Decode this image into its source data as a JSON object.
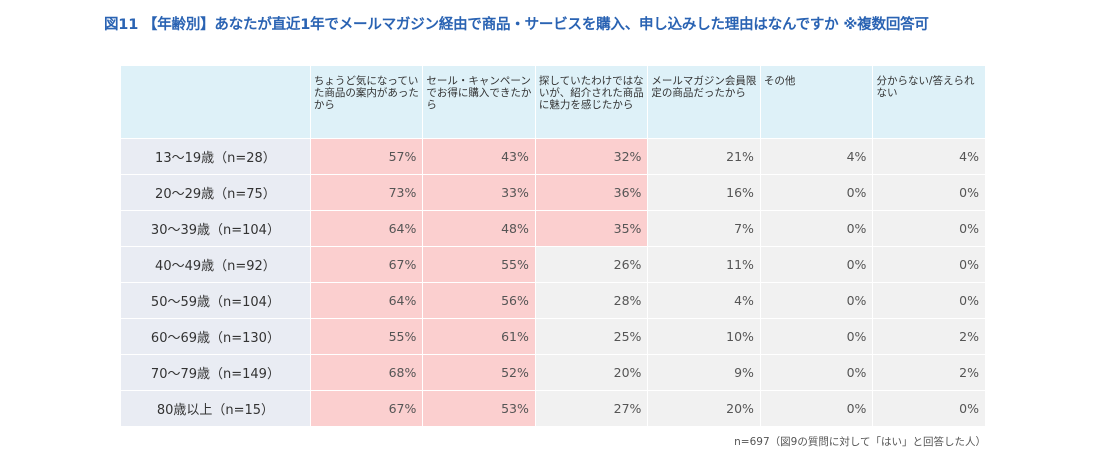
{
  "title": "図11 【年齢別】あなたが直近1年でメールマガジン経由で商品・サービスを購入、申し込みした理由はなんですか ※複数回答可",
  "note": "n=697（図9の質問に対して「はい」と回答した人）",
  "colors": {
    "header_bg": "#def1f8",
    "row_header_bg": "#e9ecf3",
    "cell_bg": "#f1f1f1",
    "highlight_bg": "#fbcfcf",
    "title": "#2a63b3"
  },
  "chart_data": {
    "type": "table",
    "columns": [
      "ちょうど気になっていた商品の案内があったから",
      "セール・キャンペーンでお得に購入できたから",
      "探していたわけではないが、紹介された商品に魅力を感じたから",
      "メールマガジン会員限定の商品だったから",
      "その他",
      "分からない/答えられない"
    ],
    "rows": [
      {
        "label": "13〜19歳（n=28）",
        "values": [
          "57%",
          "43%",
          "32%",
          "21%",
          "4%",
          "4%"
        ],
        "highlight": [
          true,
          true,
          true,
          false,
          false,
          false
        ]
      },
      {
        "label": "20〜29歳（n=75）",
        "values": [
          "73%",
          "33%",
          "36%",
          "16%",
          "0%",
          "0%"
        ],
        "highlight": [
          true,
          true,
          true,
          false,
          false,
          false
        ]
      },
      {
        "label": "30〜39歳（n=104）",
        "values": [
          "64%",
          "48%",
          "35%",
          "7%",
          "0%",
          "0%"
        ],
        "highlight": [
          true,
          true,
          true,
          false,
          false,
          false
        ]
      },
      {
        "label": "40〜49歳（n=92）",
        "values": [
          "67%",
          "55%",
          "26%",
          "11%",
          "0%",
          "0%"
        ],
        "highlight": [
          true,
          true,
          false,
          false,
          false,
          false
        ]
      },
      {
        "label": "50〜59歳（n=104）",
        "values": [
          "64%",
          "56%",
          "28%",
          "4%",
          "0%",
          "0%"
        ],
        "highlight": [
          true,
          true,
          false,
          false,
          false,
          false
        ]
      },
      {
        "label": "60〜69歳（n=130）",
        "values": [
          "55%",
          "61%",
          "25%",
          "10%",
          "0%",
          "2%"
        ],
        "highlight": [
          true,
          true,
          false,
          false,
          false,
          false
        ]
      },
      {
        "label": "70〜79歳（n=149）",
        "values": [
          "68%",
          "52%",
          "20%",
          "9%",
          "0%",
          "2%"
        ],
        "highlight": [
          true,
          true,
          false,
          false,
          false,
          false
        ]
      },
      {
        "label": "80歳以上（n=15）",
        "values": [
          "67%",
          "53%",
          "27%",
          "20%",
          "0%",
          "0%"
        ],
        "highlight": [
          true,
          true,
          false,
          false,
          false,
          false
        ]
      }
    ]
  }
}
